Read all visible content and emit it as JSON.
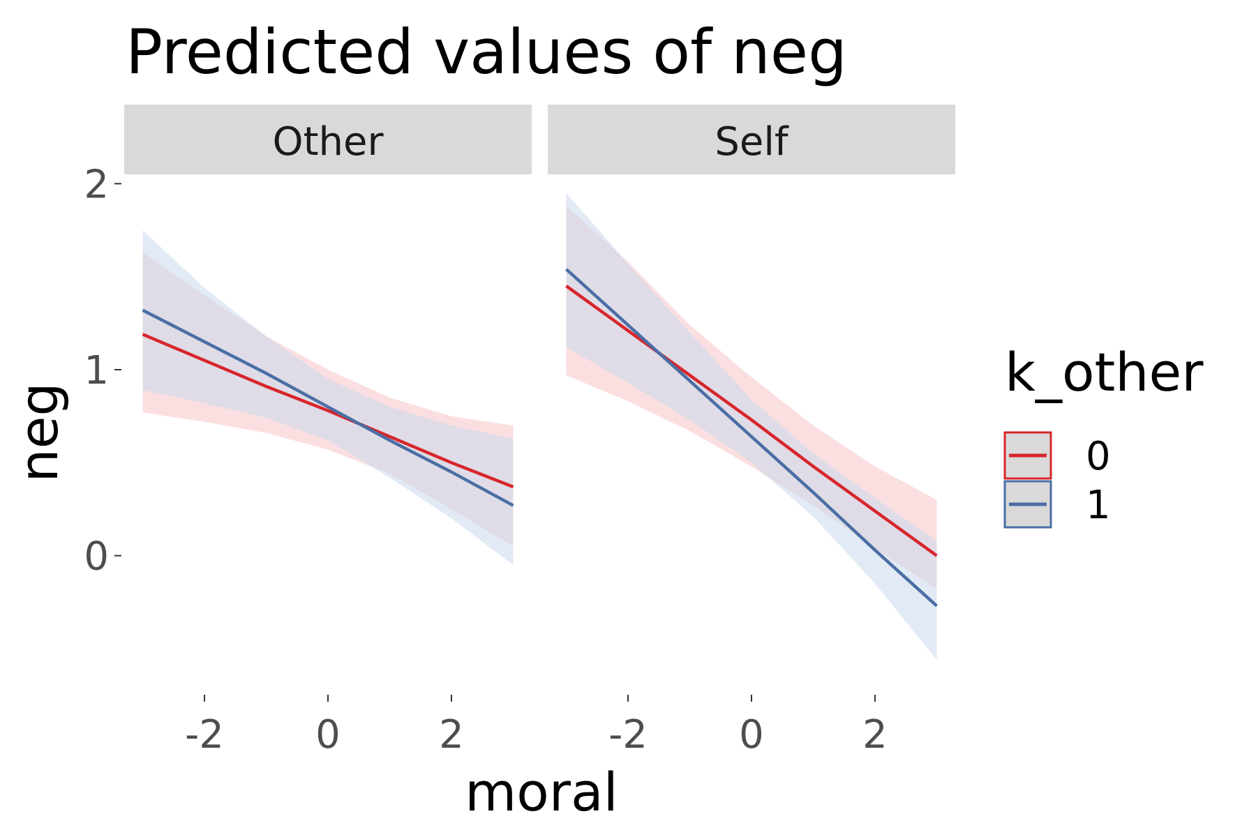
{
  "chart_data": {
    "type": "line",
    "title": "Predicted values of neg",
    "xlabel": "moral",
    "ylabel": "neg",
    "xlim": [
      -3.3,
      3.3
    ],
    "ylim": [
      -0.65,
      2.05
    ],
    "x_ticks": [
      -2,
      0,
      2
    ],
    "x_tick_labels": [
      "-2",
      "0",
      "2"
    ],
    "y_ticks": [
      0,
      1,
      2
    ],
    "y_tick_labels": [
      "0",
      "1",
      "2"
    ],
    "grid": false,
    "legend": {
      "title": "k_other",
      "position": "right",
      "entries": [
        "0",
        "1"
      ]
    },
    "colors": {
      "0": "#d7262b",
      "1": "#4a6ea4",
      "band_0": "#f7c4c7",
      "band_1": "#c8d9ec",
      "strip": "#d9d9d9"
    },
    "panels": [
      {
        "label": "Other",
        "series": [
          {
            "name": "0",
            "x": [
              -3,
              -2,
              -1,
              0,
              1,
              2,
              3
            ],
            "y": [
              1.19,
              1.05,
              0.91,
              0.78,
              0.64,
              0.5,
              0.37
            ],
            "lower": [
              0.77,
              0.72,
              0.66,
              0.57,
              0.44,
              0.25,
              0.05
            ],
            "upper": [
              1.63,
              1.4,
              1.18,
              1.0,
              0.85,
              0.75,
              0.7
            ]
          },
          {
            "name": "1",
            "x": [
              -3,
              -2,
              -1,
              0,
              1,
              2,
              3
            ],
            "y": [
              1.32,
              1.15,
              0.98,
              0.8,
              0.62,
              0.45,
              0.27
            ],
            "lower": [
              0.89,
              0.82,
              0.74,
              0.62,
              0.42,
              0.2,
              -0.05
            ],
            "upper": [
              1.75,
              1.44,
              1.18,
              0.95,
              0.8,
              0.7,
              0.63
            ]
          }
        ]
      },
      {
        "label": "Self",
        "series": [
          {
            "name": "0",
            "x": [
              -3,
              -2,
              -1,
              0,
              1,
              2,
              3
            ],
            "y": [
              1.45,
              1.21,
              0.97,
              0.73,
              0.48,
              0.24,
              0.0
            ],
            "lower": [
              0.97,
              0.83,
              0.67,
              0.48,
              0.27,
              0.04,
              -0.18
            ],
            "upper": [
              1.88,
              1.58,
              1.24,
              0.96,
              0.7,
              0.48,
              0.3
            ]
          },
          {
            "name": "1",
            "x": [
              -3,
              -2,
              -1,
              0,
              1,
              2,
              3
            ],
            "y": [
              1.54,
              1.24,
              0.94,
              0.64,
              0.34,
              0.03,
              -0.27
            ],
            "lower": [
              1.12,
              0.93,
              0.73,
              0.5,
              0.21,
              -0.15,
              -0.56
            ],
            "upper": [
              1.95,
              1.57,
              1.2,
              0.84,
              0.55,
              0.31,
              0.08
            ]
          }
        ]
      }
    ]
  }
}
